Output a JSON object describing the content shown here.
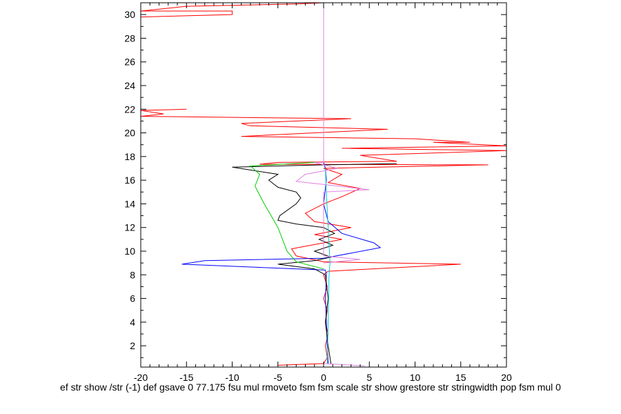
{
  "chart_data": {
    "type": "line",
    "title": "",
    "xlabel": "ef str show /str (-1) def gsave 0 77.175 fsu mul rmoveto fsm fsm scale str show grestore str stringwidth pop fsm mul 0",
    "ylabel": "",
    "xlim": [
      -20,
      20
    ],
    "ylim": [
      0.2,
      31
    ],
    "x_ticks": [
      -20,
      -15,
      -10,
      -5,
      0,
      5,
      10,
      15,
      20
    ],
    "y_ticks": [
      2,
      4,
      6,
      8,
      10,
      12,
      14,
      16,
      18,
      20,
      22,
      24,
      26,
      28,
      30
    ],
    "grid": false,
    "series": [
      {
        "color": "#ff0000",
        "points": [
          [
            -5,
            0.35
          ],
          [
            0,
            0.5
          ],
          [
            0.4,
            1
          ],
          [
            0.2,
            2
          ],
          [
            0.5,
            3
          ],
          [
            0.2,
            4
          ],
          [
            0.4,
            5
          ],
          [
            0,
            6
          ],
          [
            0.4,
            7
          ],
          [
            0,
            8
          ],
          [
            0.5,
            8.3
          ],
          [
            15,
            8.9
          ],
          [
            0,
            9.1
          ],
          [
            -3,
            9.6
          ],
          [
            -3.5,
            10.2
          ],
          [
            0,
            10.7
          ],
          [
            2,
            11
          ],
          [
            -1,
            11.4
          ],
          [
            3,
            12
          ],
          [
            -1,
            12.5
          ],
          [
            -2,
            13.2
          ],
          [
            0,
            14
          ],
          [
            2,
            14.6
          ],
          [
            4,
            15.3
          ],
          [
            0.5,
            15.8
          ],
          [
            2,
            16.5
          ],
          [
            0,
            17
          ],
          [
            18,
            17.3
          ],
          [
            -7,
            17.35
          ],
          [
            -5,
            17.5
          ],
          [
            8,
            17.6
          ],
          [
            4,
            18.1
          ],
          [
            20,
            18.5
          ],
          [
            2,
            18.7
          ],
          [
            20,
            18.9
          ],
          [
            12,
            19.2
          ],
          [
            16,
            19.2
          ],
          [
            10,
            19.5
          ],
          [
            -9,
            19.7
          ],
          [
            7,
            20.3
          ],
          [
            -8,
            20.6
          ],
          [
            -9,
            20.8
          ],
          [
            3,
            21.2
          ],
          [
            -20,
            21.4
          ],
          [
            -17.5,
            21.6
          ],
          [
            -20,
            21.9
          ],
          [
            -15,
            22
          ]
        ]
      },
      {
        "color": "#ff0000",
        "points": [
          [
            -20,
            29.8
          ],
          [
            -10,
            30
          ],
          [
            -10,
            30.3
          ],
          [
            -20,
            30.3
          ],
          [
            -15,
            30.7
          ],
          [
            -3,
            30.9
          ],
          [
            0,
            31
          ]
        ]
      },
      {
        "color": "#0000ff",
        "points": [
          [
            0.5,
            0.5
          ],
          [
            0.4,
            2
          ],
          [
            0.3,
            4
          ],
          [
            0.2,
            6
          ],
          [
            0.3,
            8
          ],
          [
            0.2,
            8.4
          ],
          [
            -15.5,
            8.9
          ],
          [
            -13,
            9.2
          ],
          [
            0,
            9.4
          ],
          [
            6.2,
            10.3
          ],
          [
            5.5,
            10.7
          ],
          [
            2,
            11.5
          ],
          [
            0.5,
            12.5
          ],
          [
            0,
            14
          ],
          [
            0.3,
            16
          ],
          [
            0.2,
            17
          ],
          [
            0,
            17.5
          ]
        ]
      },
      {
        "color": "#000000",
        "points": [
          [
            0.8,
            0.5
          ],
          [
            0.5,
            2
          ],
          [
            0.2,
            4
          ],
          [
            0.5,
            6
          ],
          [
            0.2,
            8
          ],
          [
            -1,
            8.5
          ],
          [
            -5,
            8.9
          ],
          [
            -1,
            9.2
          ],
          [
            0.8,
            9.5
          ],
          [
            -1,
            10
          ],
          [
            1,
            10.5
          ],
          [
            -0.5,
            11
          ],
          [
            1.2,
            11.5
          ],
          [
            0,
            12
          ],
          [
            -3,
            12.3
          ],
          [
            -5,
            12.6
          ],
          [
            -4.8,
            13
          ],
          [
            -3,
            14
          ],
          [
            -2.5,
            14.5
          ],
          [
            -3,
            15
          ],
          [
            -5,
            15.4
          ],
          [
            -6,
            16
          ],
          [
            -5,
            16.5
          ],
          [
            -10,
            17.1
          ],
          [
            0,
            17.3
          ],
          [
            8,
            17.4
          ]
        ]
      },
      {
        "color": "#00cc00",
        "points": [
          [
            0,
            8.5
          ],
          [
            -3,
            9.1
          ],
          [
            -4,
            10
          ],
          [
            -5,
            12
          ],
          [
            -6.5,
            14
          ],
          [
            -7.5,
            15.5
          ],
          [
            -7,
            16.5
          ],
          [
            -8,
            17.2
          ],
          [
            -1,
            17.5
          ]
        ]
      },
      {
        "color": "#00cccc",
        "points": [
          [
            0.4,
            0.5
          ],
          [
            0.5,
            4
          ],
          [
            0.6,
            8
          ],
          [
            0.7,
            9
          ],
          [
            0.5,
            12
          ],
          [
            0.3,
            15
          ],
          [
            0.2,
            17
          ]
        ]
      },
      {
        "color": "#e07fe0",
        "points": [
          [
            4.5,
            0.3
          ],
          [
            0,
            0.5
          ]
        ]
      },
      {
        "color": "#e07fe0",
        "points": [
          [
            0,
            9
          ],
          [
            4,
            9.3
          ],
          [
            0,
            9.6
          ],
          [
            0,
            15
          ],
          [
            5,
            15.2
          ],
          [
            -3,
            15.9
          ],
          [
            -2,
            16.5
          ],
          [
            1.5,
            17
          ],
          [
            -1,
            17.5
          ],
          [
            0,
            17.5
          ],
          [
            0,
            31
          ]
        ]
      }
    ]
  }
}
